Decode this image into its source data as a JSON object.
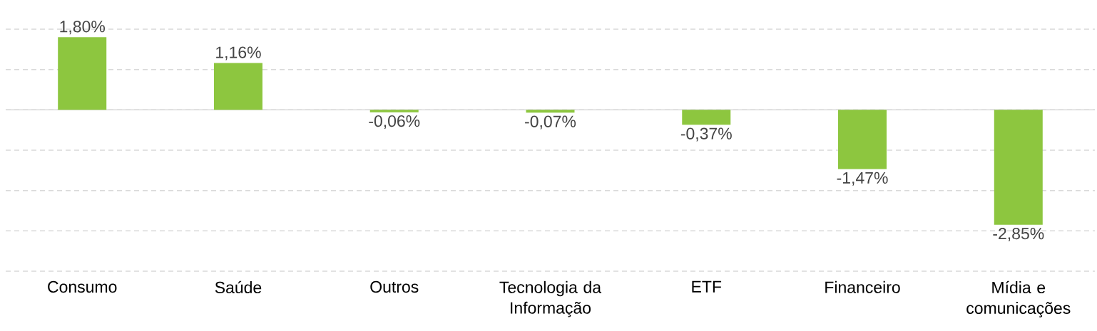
{
  "chart_data": {
    "type": "bar",
    "categories": [
      "Consumo",
      "Saúde",
      "Outros",
      "Tecnologia da Informação",
      "ETF",
      "Financeiro",
      "Mídia e comunicações"
    ],
    "values": [
      1.8,
      1.16,
      -0.06,
      -0.07,
      -0.37,
      -1.47,
      -2.85
    ],
    "value_labels": [
      "1,80%",
      "1,16%",
      "-0,06%",
      "-0,07%",
      "-0,37%",
      "-1,47%",
      "-2,85%"
    ],
    "color": "#8dc63f",
    "ylim": [
      -4,
      2
    ],
    "yticks": [
      {
        "value": -4,
        "label": null
      },
      {
        "value": -3,
        "label": null
      },
      {
        "value": -2,
        "label": null
      },
      {
        "value": -1,
        "label": null
      },
      {
        "value": 0,
        "label": null
      },
      {
        "value": 1,
        "label": null
      },
      {
        "value": 2,
        "label": null
      }
    ],
    "grid": "y",
    "tick_labels": "x"
  }
}
